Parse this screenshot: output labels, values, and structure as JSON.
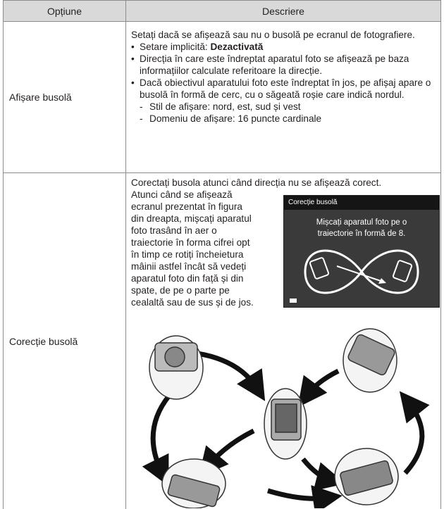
{
  "table": {
    "header": [
      "Opțiune",
      "Descriere"
    ],
    "rows": [
      {
        "option": "Afișare busolă",
        "description": {
          "intro": "Setați dacă se afișează sau nu o busolă pe ecranul de fotografiere.",
          "default_label": "Setare implicită:",
          "default_value": "Dezactivată",
          "bullets": [
            "Direcția în care este îndreptat aparatul foto se afișează pe baza informațiilor calculate referitoare la direcție.",
            "Dacă obiectivul aparatului foto este îndreptat în jos, pe afișaj apare o busolă în formă de cerc, cu o săgeată roșie care indică nordul."
          ],
          "sub_items": [
            "Stil de afișare: nord, est, sud și vest",
            "Domeniu de afișare: 16 puncte cardinale"
          ]
        }
      },
      {
        "option": "Corecție busolă",
        "description": {
          "intro": "Corectați busola atunci când direcția nu se afișează corect.",
          "lines": [
            "Atunci când se afișează",
            "ecranul prezentat în figura",
            "din dreapta, mișcați aparatul",
            "foto trasând în aer o",
            "traiectorie în forma cifrei opt",
            "în timp ce rotiți încheietura",
            "mâinii astfel încât să vedeți",
            "aparatul foto din față și din",
            "spate, de pe o parte pe",
            "cealaltă sau de sus și de jos."
          ],
          "screen_title": "Corecție busolă",
          "screen_message": "Mișcați aparatul foto pe o traiectorie în formă de 8."
        }
      }
    ]
  }
}
